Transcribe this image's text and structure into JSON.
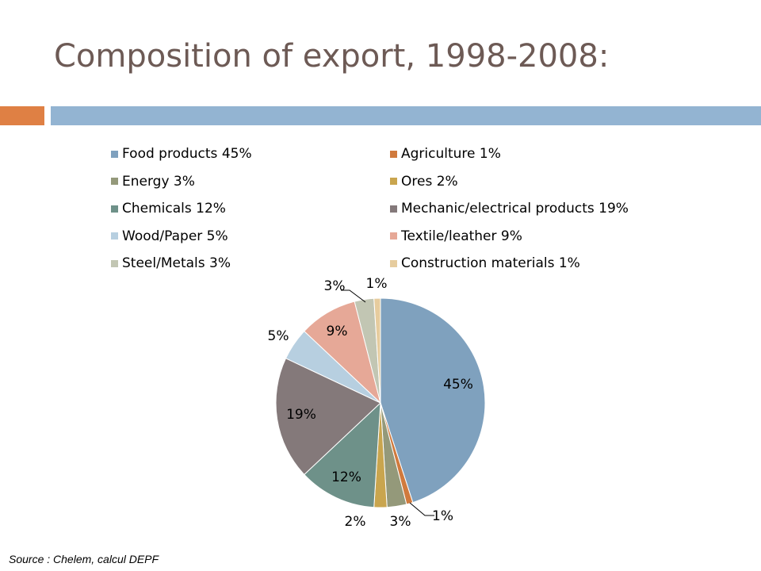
{
  "slide": {
    "title": "Composition of export, 1998-2008:",
    "source": "Source : Chelem, calcul DEPF",
    "accent_colors": {
      "left_bar": "#df8044",
      "right_bar": "#93b4d2",
      "title_text": "#6d5a55"
    }
  },
  "chart_data": {
    "type": "pie",
    "title": "",
    "legend_position": "top",
    "slices": [
      {
        "legend": "Food products 45%",
        "value": 45,
        "label": "45%",
        "color": "#7fa1be"
      },
      {
        "legend": "Agriculture 1%",
        "value": 1,
        "label": "1%",
        "color": "#d07a3d"
      },
      {
        "legend": "Energy 3%",
        "value": 3,
        "label": "3%",
        "color": "#94997a"
      },
      {
        "legend": "Ores 2%",
        "value": 2,
        "label": "2%",
        "color": "#c9a54e"
      },
      {
        "legend": "Chemicals 12%",
        "value": 12,
        "label": "12%",
        "color": "#6e9189"
      },
      {
        "legend": "Mechanic/electrical products 19%",
        "value": 19,
        "label": "19%",
        "color": "#84797a"
      },
      {
        "legend": "Wood/Paper 5%",
        "value": 5,
        "label": "5%",
        "color": "#b7cfe0"
      },
      {
        "legend": "Textile/leather 9%",
        "value": 9,
        "label": "9%",
        "color": "#e6a897"
      },
      {
        "legend": "Steel/Metals 3%",
        "value": 3,
        "label": "3%",
        "color": "#c2c6b3"
      },
      {
        "legend": "Construction materials 1%",
        "value": 1,
        "label": "1%",
        "color": "#e6cc9e"
      }
    ]
  }
}
